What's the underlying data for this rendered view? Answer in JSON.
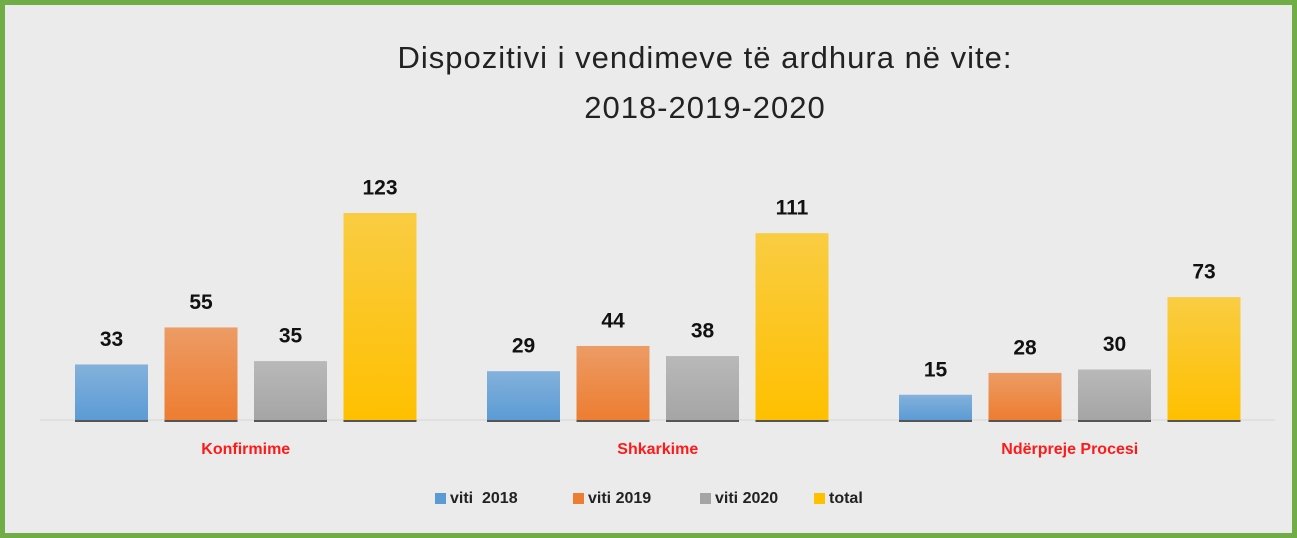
{
  "chart_data": {
    "type": "bar",
    "title": "Dispozitivi i vendimeve të ardhura në vite: 2018-2019-2020",
    "categories": [
      "Konfirmime",
      "Shkarkime",
      "Ndërpreje Procesi"
    ],
    "series": [
      {
        "name": "viti  2018",
        "color": "#5b9bd5",
        "values": [
          33,
          29,
          15
        ]
      },
      {
        "name": "viti 2019",
        "color": "#ed7d31",
        "values": [
          55,
          44,
          28
        ]
      },
      {
        "name": "viti 2020",
        "color": "#a5a5a5",
        "values": [
          35,
          38,
          30
        ]
      },
      {
        "name": "total",
        "color": "#ffc000",
        "values": [
          123,
          111,
          73
        ]
      }
    ],
    "legend": "bottom"
  }
}
